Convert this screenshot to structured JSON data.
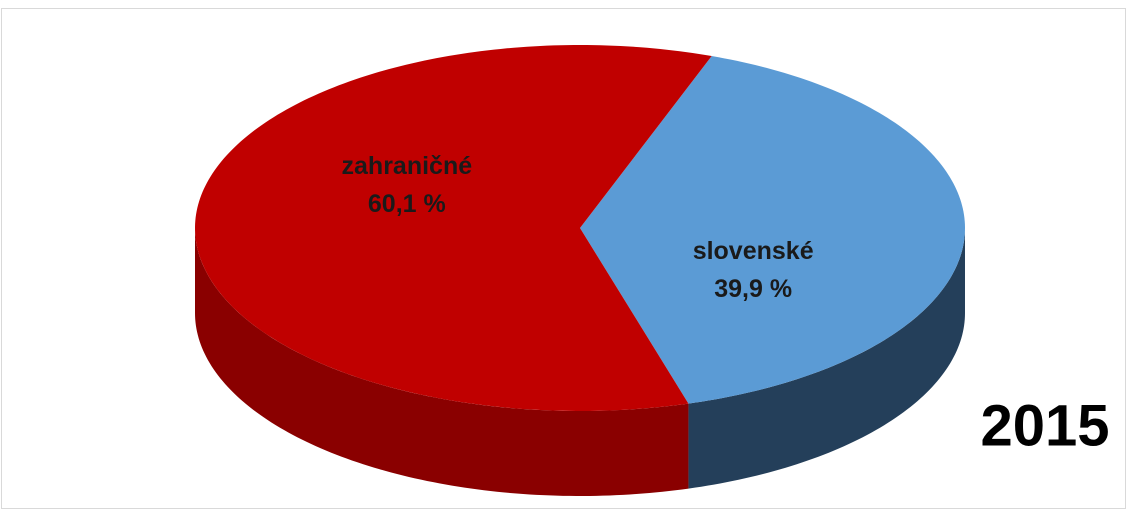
{
  "chart_data": {
    "type": "pie",
    "annotation": "2015",
    "categories": [
      "zahraničné",
      "slovenské"
    ],
    "values": [
      60.1,
      39.9
    ],
    "value_labels": [
      "60,1 %",
      "39,9 %"
    ],
    "colors": [
      "#c00000",
      "#5b9bd5"
    ],
    "side_colors": [
      "#8a0000",
      "#243f5a"
    ]
  }
}
